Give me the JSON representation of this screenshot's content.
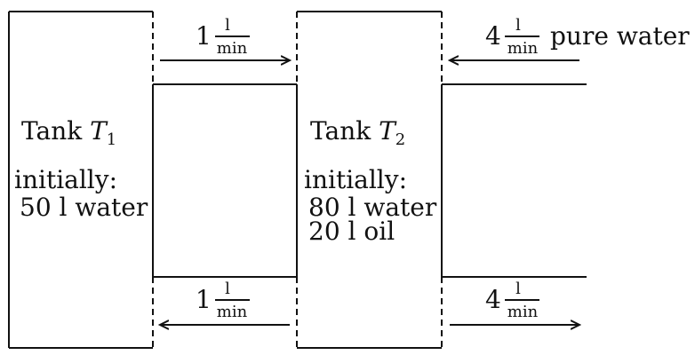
{
  "tank1": {
    "name_text": "Tank ",
    "name_symbol": "T",
    "name_sub": "1",
    "initially_label": "initially:",
    "contents": [
      "50 l water"
    ]
  },
  "tank2": {
    "name_text": "Tank ",
    "name_symbol": "T",
    "name_sub": "2",
    "initially_label": "initially:",
    "contents": [
      "80 l water",
      "20 l oil"
    ]
  },
  "flows": {
    "t1_to_t2": {
      "amount": "1",
      "unit_num": "l",
      "unit_den": "min"
    },
    "t2_to_t1": {
      "amount": "1",
      "unit_num": "l",
      "unit_den": "min"
    },
    "inflow_t2": {
      "amount": "4",
      "unit_num": "l",
      "unit_den": "min",
      "note": "pure water"
    },
    "outflow_t2": {
      "amount": "4",
      "unit_num": "l",
      "unit_den": "min"
    }
  }
}
